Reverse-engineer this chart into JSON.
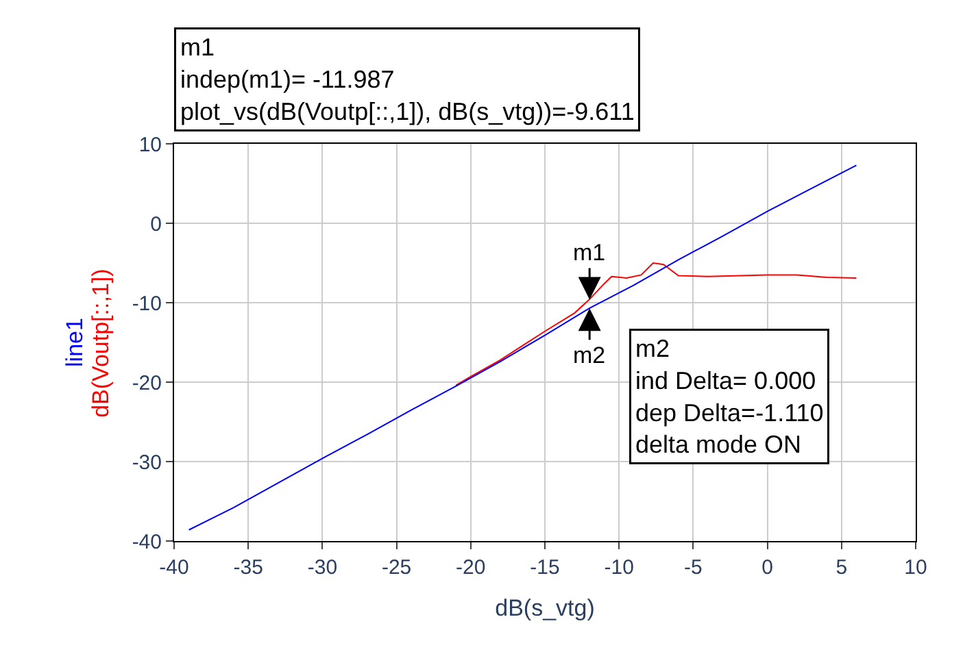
{
  "chart_data": {
    "type": "line",
    "xlabel": "dB(s_vtg)",
    "series": [
      {
        "name": "line1",
        "color": "#0000ff",
        "x": [
          -39,
          -36,
          -33,
          -30,
          -27,
          -24,
          -21,
          -18,
          -15,
          -12,
          -9,
          -6,
          -3,
          0,
          3,
          6
        ],
        "values": [
          -38.6,
          -35.8,
          -32.7,
          -29.6,
          -26.6,
          -23.5,
          -20.5,
          -17.4,
          -14.1,
          -10.7,
          -7.8,
          -4.6,
          -1.6,
          1.5,
          4.4,
          7.3
        ]
      },
      {
        "name": "dB(Voutp[::,1])",
        "color": "#ff0000",
        "x": [
          -21,
          -20,
          -18,
          -15,
          -13,
          -12,
          -11,
          -10.5,
          -9.5,
          -8.5,
          -7.7,
          -7,
          -6,
          -4,
          0,
          2,
          4,
          6
        ],
        "values": [
          -20.4,
          -19.3,
          -17.2,
          -13.6,
          -11.3,
          -9.6,
          -7.6,
          -6.7,
          -6.9,
          -6.5,
          -5.0,
          -5.2,
          -6.6,
          -6.7,
          -6.5,
          -6.5,
          -6.8,
          -6.9
        ]
      }
    ],
    "xlim": [
      -40,
      10
    ],
    "xticks": [
      -40,
      -35,
      -30,
      -25,
      -20,
      -15,
      -10,
      -5,
      0,
      5,
      10
    ],
    "ylim": [
      -40,
      10
    ],
    "yticks": [
      -40,
      -30,
      -20,
      -10,
      0,
      10
    ],
    "grid": true,
    "legend": false,
    "marker": "none",
    "line_style": "solid",
    "annotations": [
      "m1\nindep(m1)= -11.987\nplot_vs(dB(Voutp[::,1]), dB(s_vtg))=-9.611",
      "m2\nind Delta= 0.000\ndep Delta=-1.110\ndelta mode ON",
      {
        "text": "m1",
        "x": -11.987,
        "y": -9.611
      },
      {
        "text": "m2",
        "x": -11.987,
        "y": -10.721
      }
    ]
  }
}
